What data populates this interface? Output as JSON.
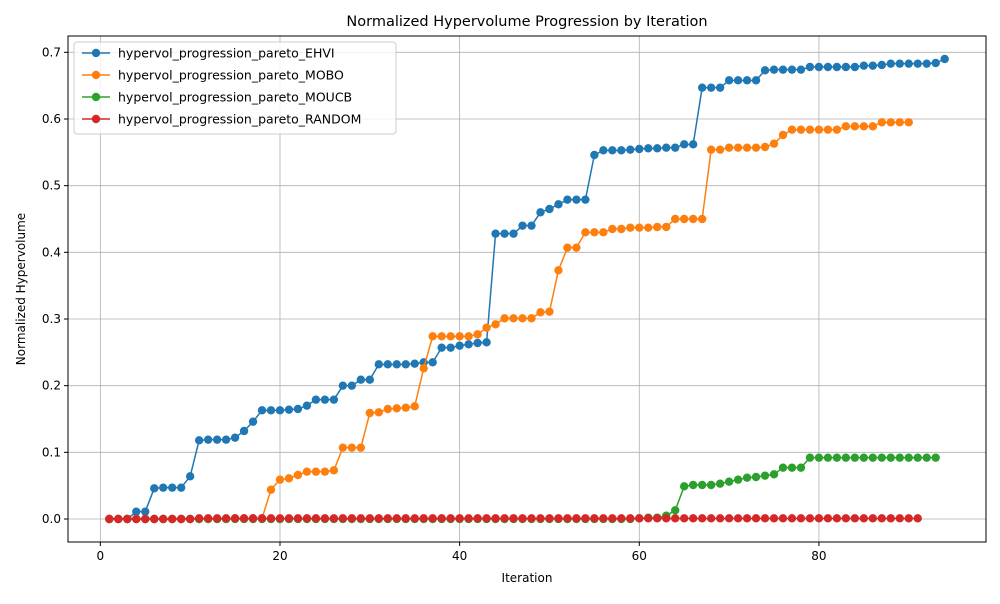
{
  "chart_data": {
    "type": "line",
    "title": "Normalized Hypervolume Progression by Iteration",
    "xlabel": "Iteration",
    "ylabel": "Normalized Hypervolume",
    "xlim": [
      -3.6,
      98.6
    ],
    "ylim": [
      -0.0345,
      0.7245
    ],
    "xticks": [
      0,
      20,
      40,
      60,
      80
    ],
    "xtick_labels": [
      "0",
      "20",
      "40",
      "60",
      "80"
    ],
    "yticks": [
      0.0,
      0.1,
      0.2,
      0.3,
      0.4,
      0.5,
      0.6,
      0.7
    ],
    "ytick_labels": [
      "0.0",
      "0.1",
      "0.2",
      "0.3",
      "0.4",
      "0.5",
      "0.6",
      "0.7"
    ],
    "grid": true,
    "legend_position": "top-left",
    "series": [
      {
        "name": "hypervol_progression_pareto_EHVI",
        "color": "#1f77b4",
        "marker": "circle",
        "x_start": 1,
        "values": [
          0,
          0,
          0,
          0.011,
          0.011,
          0.046,
          0.047,
          0.047,
          0.047,
          0.064,
          0.118,
          0.119,
          0.119,
          0.119,
          0.122,
          0.132,
          0.146,
          0.163,
          0.163,
          0.163,
          0.164,
          0.165,
          0.17,
          0.179,
          0.179,
          0.179,
          0.2,
          0.2,
          0.209,
          0.209,
          0.232,
          0.232,
          0.232,
          0.232,
          0.233,
          0.235,
          0.235,
          0.257,
          0.257,
          0.26,
          0.262,
          0.264,
          0.265,
          0.428,
          0.428,
          0.428,
          0.44,
          0.44,
          0.46,
          0.465,
          0.472,
          0.479,
          0.479,
          0.479,
          0.546,
          0.553,
          0.553,
          0.553,
          0.554,
          0.555,
          0.556,
          0.556,
          0.557,
          0.557,
          0.562,
          0.562,
          0.647,
          0.647,
          0.647,
          0.658,
          0.658,
          0.658,
          0.658,
          0.673,
          0.674,
          0.674,
          0.674,
          0.674,
          0.678,
          0.678,
          0.678,
          0.678,
          0.678,
          0.678,
          0.68,
          0.68,
          0.681,
          0.683,
          0.683,
          0.683,
          0.683,
          0.683,
          0.684,
          0.69
        ]
      },
      {
        "name": "hypervol_progression_pareto_MOBO",
        "color": "#ff7f0e",
        "marker": "circle",
        "x_start": 1,
        "values": [
          0,
          0,
          0,
          0,
          0,
          0,
          0,
          0,
          0,
          0,
          0,
          0,
          0,
          0,
          0.001,
          0.001,
          0.001,
          0.001,
          0.044,
          0.059,
          0.061,
          0.066,
          0.071,
          0.071,
          0.071,
          0.073,
          0.107,
          0.107,
          0.107,
          0.159,
          0.16,
          0.165,
          0.166,
          0.167,
          0.169,
          0.226,
          0.274,
          0.274,
          0.274,
          0.274,
          0.274,
          0.277,
          0.287,
          0.292,
          0.301,
          0.301,
          0.301,
          0.301,
          0.31,
          0.311,
          0.373,
          0.407,
          0.407,
          0.43,
          0.43,
          0.43,
          0.435,
          0.435,
          0.437,
          0.437,
          0.437,
          0.438,
          0.438,
          0.45,
          0.45,
          0.45,
          0.45,
          0.554,
          0.554,
          0.557,
          0.557,
          0.557,
          0.557,
          0.558,
          0.563,
          0.576,
          0.584,
          0.584,
          0.584,
          0.584,
          0.584,
          0.584,
          0.589,
          0.589,
          0.589,
          0.589,
          0.595,
          0.595,
          0.595,
          0.595
        ]
      },
      {
        "name": "hypervol_progression_pareto_MOUCB",
        "color": "#2ca02c",
        "marker": "circle",
        "x_start": 1,
        "values": [
          0,
          0,
          0,
          0,
          0,
          0,
          0,
          0,
          0,
          0,
          0,
          0,
          0,
          0,
          0,
          0,
          0,
          0,
          0,
          0,
          0,
          0,
          0,
          0,
          0,
          0,
          0,
          0,
          0,
          0,
          0,
          0,
          0,
          0,
          0,
          0,
          0,
          0,
          0,
          0,
          0,
          0,
          0,
          0,
          0,
          0,
          0,
          0,
          0,
          0,
          0,
          0,
          0,
          0,
          0,
          0,
          0,
          0,
          0,
          0.001,
          0.002,
          0.002,
          0.005,
          0.013,
          0.049,
          0.051,
          0.051,
          0.051,
          0.053,
          0.056,
          0.059,
          0.062,
          0.063,
          0.065,
          0.067,
          0.077,
          0.077,
          0.077,
          0.092,
          0.092,
          0.092,
          0.092,
          0.092,
          0.092,
          0.092,
          0.092,
          0.092,
          0.092,
          0.092,
          0.092,
          0.092,
          0.092,
          0.092
        ]
      },
      {
        "name": "hypervol_progression_pareto_RANDOM",
        "color": "#d62728",
        "marker": "circle",
        "x_start": 1,
        "values": [
          0,
          0,
          0,
          0,
          0,
          0,
          0,
          0,
          0,
          0,
          0.001,
          0.001,
          0.001,
          0.001,
          0.001,
          0.001,
          0.001,
          0.001,
          0.001,
          0.001,
          0.001,
          0.001,
          0.001,
          0.001,
          0.001,
          0.001,
          0.001,
          0.001,
          0.001,
          0.001,
          0.001,
          0.001,
          0.001,
          0.001,
          0.001,
          0.001,
          0.001,
          0.001,
          0.001,
          0.001,
          0.001,
          0.001,
          0.001,
          0.001,
          0.001,
          0.001,
          0.001,
          0.001,
          0.001,
          0.001,
          0.001,
          0.001,
          0.001,
          0.001,
          0.001,
          0.001,
          0.001,
          0.001,
          0.001,
          0.001,
          0.001,
          0.001,
          0.001,
          0.001,
          0.001,
          0.001,
          0.001,
          0.001,
          0.001,
          0.001,
          0.001,
          0.001,
          0.001,
          0.001,
          0.001,
          0.001,
          0.001,
          0.001,
          0.001,
          0.001,
          0.001,
          0.001,
          0.001,
          0.001,
          0.001,
          0.001,
          0.001,
          0.001,
          0.001,
          0.001,
          0.001
        ]
      }
    ]
  }
}
